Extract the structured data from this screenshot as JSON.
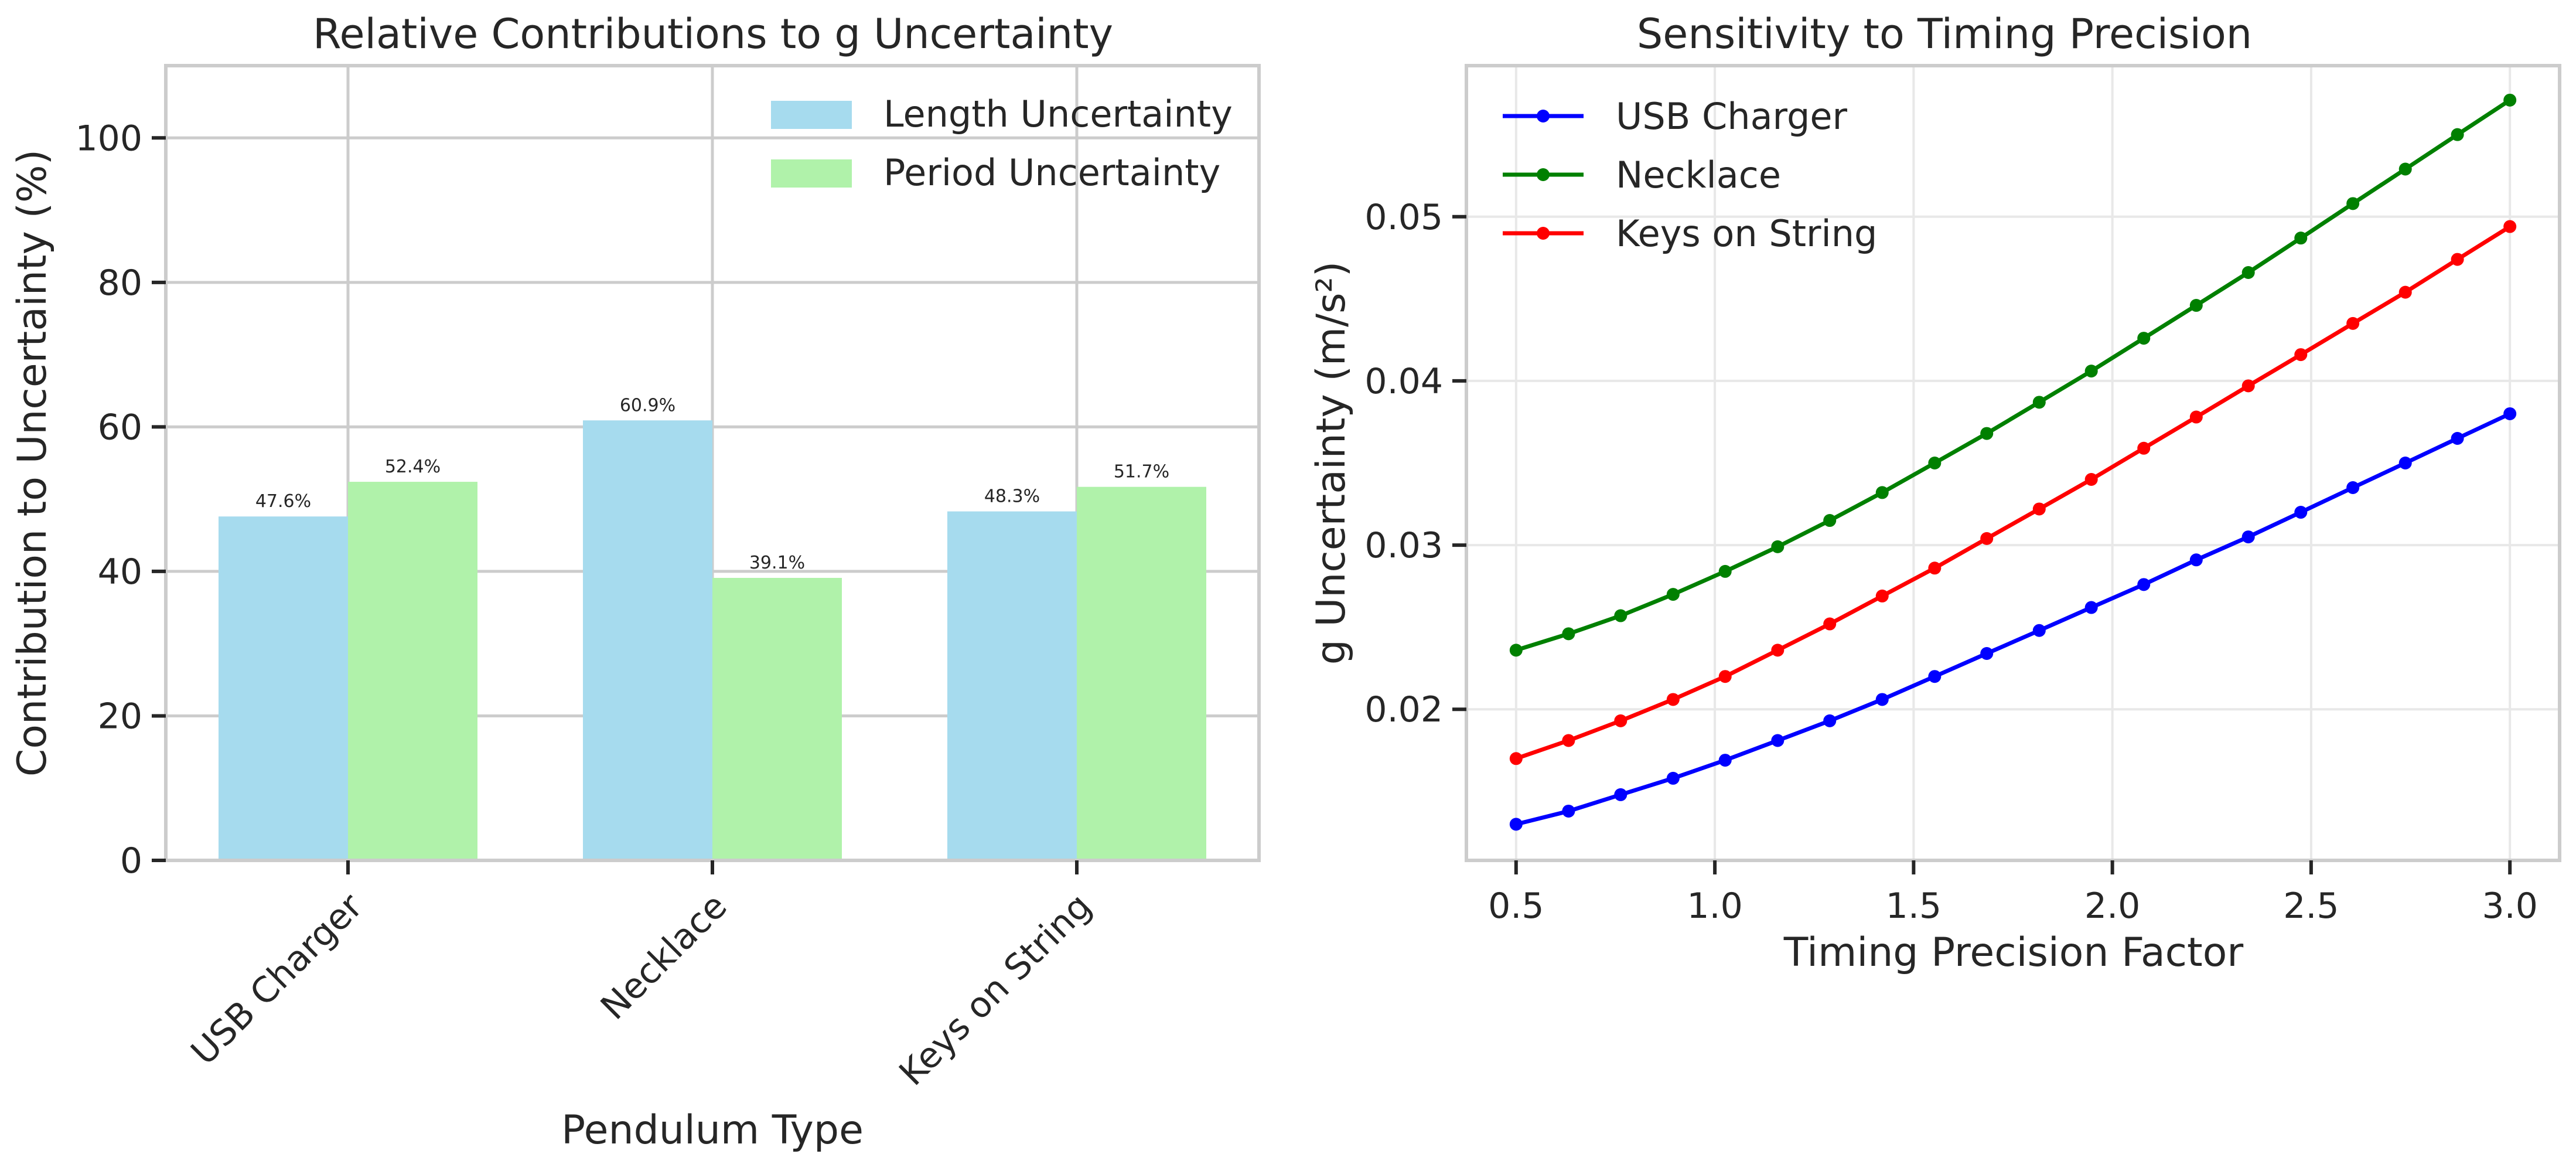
{
  "chart_data": [
    {
      "type": "bar",
      "title": "Relative Contributions to g Uncertainty",
      "xlabel": "Pendulum Type",
      "ylabel": "Contribution to Uncertainty (%)",
      "ylim": [
        0,
        110
      ],
      "yticks": [
        0,
        20,
        40,
        60,
        80,
        100
      ],
      "categories": [
        "USB Charger",
        "Necklace",
        "Keys on String"
      ],
      "series": [
        {
          "name": "Length Uncertainty",
          "color": "#a6dbee",
          "values": [
            47.6,
            60.9,
            48.3
          ],
          "labels": [
            "47.6%",
            "60.9%",
            "48.3%"
          ]
        },
        {
          "name": "Period Uncertainty",
          "color": "#b0f2aa",
          "values": [
            52.4,
            39.1,
            51.7
          ],
          "labels": [
            "52.4%",
            "39.1%",
            "51.7%"
          ]
        }
      ],
      "legend": "top-right",
      "grid": true
    },
    {
      "type": "line",
      "title": "Sensitivity to Timing Precision",
      "xlabel": "Timing Precision Factor",
      "ylabel": "g Uncertainty (m/s²)",
      "xlim": [
        0.375,
        3.125
      ],
      "ylim": [
        0.0108,
        0.0592
      ],
      "xticks": [
        "0.5",
        "1.0",
        "1.5",
        "2.0",
        "2.5",
        "3.0"
      ],
      "yticks": [
        "0.02",
        "0.03",
        "0.04",
        "0.05"
      ],
      "x": [
        0.5,
        0.632,
        0.763,
        0.895,
        1.026,
        1.158,
        1.289,
        1.421,
        1.553,
        1.684,
        1.816,
        1.947,
        2.079,
        2.211,
        2.342,
        2.474,
        2.605,
        2.737,
        2.868,
        3.0
      ],
      "series": [
        {
          "name": "USB Charger",
          "color": "#0000ff",
          "values": [
            0.013,
            0.0138,
            0.0148,
            0.0158,
            0.0169,
            0.0181,
            0.0193,
            0.0206,
            0.022,
            0.0234,
            0.0248,
            0.0262,
            0.0276,
            0.0291,
            0.0305,
            0.032,
            0.0335,
            0.035,
            0.0365,
            0.038
          ]
        },
        {
          "name": "Necklace",
          "color": "#008000",
          "values": [
            0.0236,
            0.0246,
            0.0257,
            0.027,
            0.0284,
            0.0299,
            0.0315,
            0.0332,
            0.035,
            0.0368,
            0.0387,
            0.0406,
            0.0426,
            0.0446,
            0.0466,
            0.0487,
            0.0508,
            0.0529,
            0.055,
            0.0571
          ]
        },
        {
          "name": "Keys on String",
          "color": "#ff0000",
          "values": [
            0.017,
            0.0181,
            0.0193,
            0.0206,
            0.022,
            0.0236,
            0.0252,
            0.0269,
            0.0286,
            0.0304,
            0.0322,
            0.034,
            0.0359,
            0.0378,
            0.0397,
            0.0416,
            0.0435,
            0.0454,
            0.0474,
            0.0494
          ]
        }
      ],
      "legend": "top-left",
      "grid": true
    }
  ]
}
